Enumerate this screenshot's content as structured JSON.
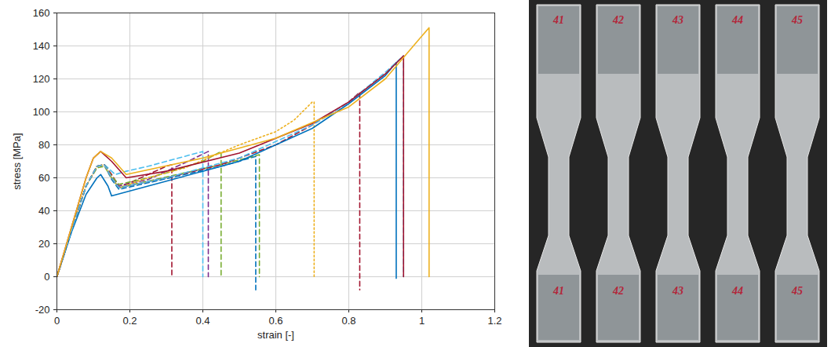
{
  "chart_data": {
    "type": "line",
    "x_label": "strain [-]",
    "y_label": "stress [MPa]",
    "xlim": [
      0,
      1.2
    ],
    "ylim": [
      -20,
      160
    ],
    "xticks": [
      0,
      0.2,
      0.4,
      0.6,
      0.8,
      1,
      1.2
    ],
    "yticks": [
      -20,
      0,
      20,
      40,
      60,
      80,
      100,
      120,
      140,
      160
    ],
    "grid": true,
    "series": [
      {
        "color": "#A2142F",
        "line_style": "dashed",
        "x": [
          0,
          0.04,
          0.08,
          0.11,
          0.13,
          0.15,
          0.17,
          0.2,
          0.25,
          0.3,
          0.315,
          0.315
        ],
        "values": [
          0,
          28,
          55,
          67,
          68,
          62,
          55,
          57,
          62,
          67,
          68,
          0
        ]
      },
      {
        "color": "#4DBEEE",
        "line_style": "dashed",
        "x": [
          0,
          0.04,
          0.08,
          0.11,
          0.13,
          0.16,
          0.19,
          0.25,
          0.3,
          0.35,
          0.4,
          0.4
        ],
        "values": [
          0,
          28,
          55,
          67,
          68,
          62,
          64,
          67,
          70,
          73,
          76,
          0
        ]
      },
      {
        "color": "#7E2F8E",
        "line_style": "dashed",
        "x": [
          0,
          0.04,
          0.08,
          0.11,
          0.13,
          0.15,
          0.17,
          0.25,
          0.3,
          0.35,
          0.415,
          0.415
        ],
        "values": [
          0,
          28,
          55,
          67,
          68,
          60,
          55,
          59,
          64,
          69,
          76,
          0
        ]
      },
      {
        "color": "#77AC30",
        "line_style": "dashed",
        "x": [
          0,
          0.04,
          0.08,
          0.11,
          0.13,
          0.15,
          0.17,
          0.25,
          0.3,
          0.4,
          0.45,
          0.45
        ],
        "values": [
          0,
          28,
          55,
          67,
          68,
          61,
          56,
          60,
          63,
          70,
          76,
          0
        ]
      },
      {
        "color": "#0072BD",
        "line_style": "dashed",
        "x": [
          0,
          0.04,
          0.08,
          0.11,
          0.13,
          0.15,
          0.17,
          0.25,
          0.35,
          0.45,
          0.545,
          0.545
        ],
        "values": [
          0,
          28,
          55,
          67,
          68,
          59,
          53,
          57,
          62,
          67,
          73,
          -8
        ]
      },
      {
        "color": "#77AC30",
        "line_style": "dashed",
        "x": [
          0,
          0.04,
          0.08,
          0.11,
          0.13,
          0.15,
          0.17,
          0.25,
          0.35,
          0.45,
          0.555,
          0.555
        ],
        "values": [
          0,
          28,
          55,
          66,
          67,
          60,
          54,
          58,
          63,
          68,
          74,
          0
        ]
      },
      {
        "color": "#EDB120",
        "line_style": "dotted",
        "x": [
          0,
          0.04,
          0.08,
          0.11,
          0.13,
          0.15,
          0.17,
          0.25,
          0.35,
          0.5,
          0.6,
          0.65,
          0.7,
          0.705,
          0.705
        ],
        "values": [
          0,
          28,
          55,
          67,
          68,
          60,
          54,
          60,
          66,
          80,
          88,
          95,
          106,
          106,
          -1
        ]
      },
      {
        "color": "#A2142F",
        "line_style": "dashed",
        "x": [
          0,
          0.04,
          0.08,
          0.11,
          0.13,
          0.15,
          0.17,
          0.3,
          0.45,
          0.6,
          0.7,
          0.8,
          0.83,
          0.83
        ],
        "values": [
          0,
          28,
          55,
          67,
          68,
          60,
          54,
          60,
          68,
          80,
          92,
          106,
          112,
          -8
        ]
      },
      {
        "color": "#0072BD",
        "line_style": "solid",
        "x": [
          0,
          0.04,
          0.08,
          0.11,
          0.12,
          0.14,
          0.15,
          0.2,
          0.3,
          0.5,
          0.7,
          0.8,
          0.9,
          0.93,
          0.93
        ],
        "values": [
          0,
          27,
          50,
          60,
          62,
          55,
          49,
          52,
          58,
          70,
          90,
          105,
          122,
          130,
          -1
        ]
      },
      {
        "color": "#4DBEEE",
        "line_style": "dashed",
        "x": [
          0,
          0.04,
          0.08,
          0.11,
          0.13,
          0.15,
          0.17,
          0.3,
          0.5,
          0.7,
          0.8,
          0.9,
          0.95,
          0.95
        ],
        "values": [
          0,
          28,
          55,
          67,
          68,
          60,
          54,
          60,
          72,
          92,
          106,
          124,
          134,
          0
        ]
      },
      {
        "color": "#A2142F",
        "line_style": "solid",
        "x": [
          0,
          0.04,
          0.08,
          0.1,
          0.12,
          0.15,
          0.19,
          0.3,
          0.5,
          0.7,
          0.8,
          0.9,
          0.95,
          0.95
        ],
        "values": [
          0,
          30,
          60,
          72,
          76,
          70,
          60,
          64,
          75,
          93,
          106,
          123,
          134,
          0
        ]
      },
      {
        "color": "#EDB120",
        "line_style": "solid",
        "x": [
          0,
          0.04,
          0.08,
          0.1,
          0.12,
          0.15,
          0.19,
          0.4,
          0.6,
          0.8,
          0.9,
          1,
          1.02,
          1.02
        ],
        "values": [
          0,
          30,
          60,
          72,
          76,
          72,
          62,
          72,
          84,
          103,
          120,
          146,
          151,
          0
        ]
      }
    ]
  },
  "photo": {
    "specimens": [
      {
        "top_label": "41",
        "bottom_label": "41"
      },
      {
        "top_label": "42",
        "bottom_label": "42"
      },
      {
        "top_label": "43",
        "bottom_label": "43"
      },
      {
        "top_label": "44",
        "bottom_label": "44"
      },
      {
        "top_label": "45",
        "bottom_label": "45"
      }
    ]
  }
}
